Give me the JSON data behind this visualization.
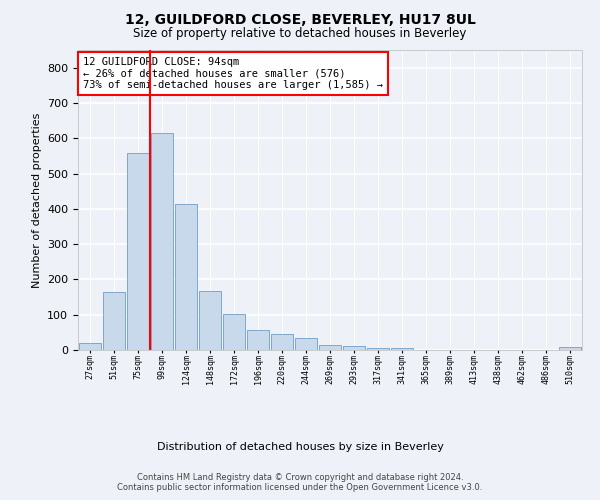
{
  "title_line1": "12, GUILDFORD CLOSE, BEVERLEY, HU17 8UL",
  "title_line2": "Size of property relative to detached houses in Beverley",
  "xlabel": "Distribution of detached houses by size in Beverley",
  "ylabel": "Number of detached properties",
  "bar_values": [
    20,
    163,
    558,
    615,
    413,
    168,
    103,
    57,
    44,
    33,
    15,
    11,
    6,
    5,
    0,
    0,
    0,
    0,
    0,
    0,
    8
  ],
  "bar_labels": [
    "27sqm",
    "51sqm",
    "75sqm",
    "99sqm",
    "124sqm",
    "148sqm",
    "172sqm",
    "196sqm",
    "220sqm",
    "244sqm",
    "269sqm",
    "293sqm",
    "317sqm",
    "341sqm",
    "365sqm",
    "389sqm",
    "413sqm",
    "438sqm",
    "462sqm",
    "486sqm",
    "510sqm"
  ],
  "bar_color": "#c9d9ec",
  "bar_edgecolor": "#7fa8cc",
  "vline_color": "red",
  "ylim": [
    0,
    850
  ],
  "yticks": [
    0,
    100,
    200,
    300,
    400,
    500,
    600,
    700,
    800
  ],
  "annotation_text": "12 GUILDFORD CLOSE: 94sqm\n← 26% of detached houses are smaller (576)\n73% of semi-detached houses are larger (1,585) →",
  "annotation_box_edgecolor": "red",
  "footer_line1": "Contains HM Land Registry data © Crown copyright and database right 2024.",
  "footer_line2": "Contains public sector information licensed under the Open Government Licence v3.0.",
  "background_color": "#eef2f8",
  "plot_background": "#eef2f8",
  "grid_color": "#ffffff"
}
